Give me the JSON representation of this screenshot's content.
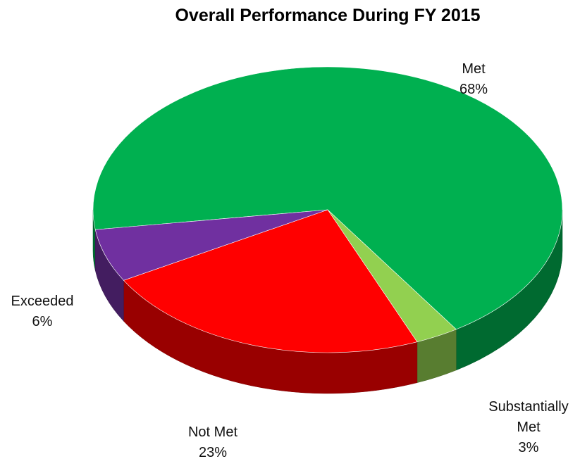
{
  "chart_data": {
    "type": "pie",
    "title": "Overall Performance During FY 2015",
    "categories": [
      "Met",
      "Substantially Met",
      "Not Met",
      "Exceeded"
    ],
    "values": [
      68,
      3,
      23,
      6
    ],
    "value_labels": [
      "68%",
      "3%",
      "23%",
      "6%"
    ],
    "colors": [
      "#00b050",
      "#92d050",
      "#ff0000",
      "#7030a0"
    ],
    "three_d": true
  }
}
